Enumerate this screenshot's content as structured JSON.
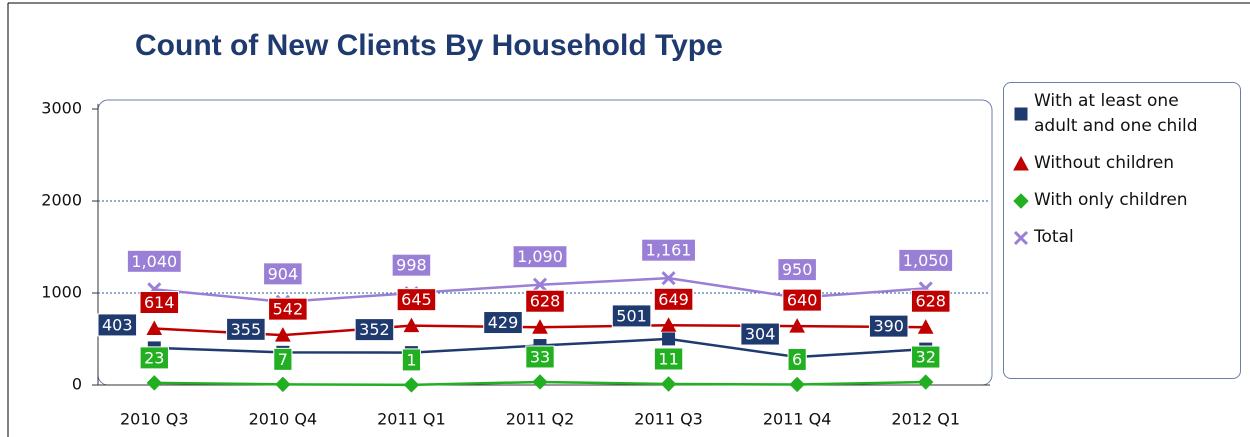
{
  "chart_data": {
    "type": "line",
    "title": "Count of New Clients By Household Type",
    "categories": [
      "2010 Q3",
      "2010 Q4",
      "2011 Q1",
      "2011 Q2",
      "2011 Q3",
      "2011 Q4",
      "2012 Q1"
    ],
    "series": [
      {
        "name": "With at least one adult and one child",
        "color": "#1f3a6e",
        "marker": "square",
        "values": [
          403,
          355,
          352,
          429,
          501,
          304,
          390
        ]
      },
      {
        "name": "Without children",
        "color": "#c00000",
        "marker": "triangle",
        "values": [
          614,
          542,
          645,
          628,
          649,
          640,
          628
        ]
      },
      {
        "name": "With only children",
        "color": "#22b022",
        "marker": "diamond",
        "values": [
          23,
          7,
          1,
          33,
          11,
          6,
          32
        ]
      },
      {
        "name": "Total",
        "color": "#9a7fd6",
        "marker": "x",
        "values": [
          1040,
          904,
          998,
          1090,
          1161,
          950,
          1050
        ],
        "value_labels": [
          "1,040",
          "904",
          "998",
          "1,090",
          "1,161",
          "950",
          "1,050"
        ]
      }
    ],
    "ylim": [
      0,
      3000
    ],
    "yticks": [
      0,
      1000,
      2000,
      3000
    ],
    "grid": true,
    "legend": "right"
  }
}
